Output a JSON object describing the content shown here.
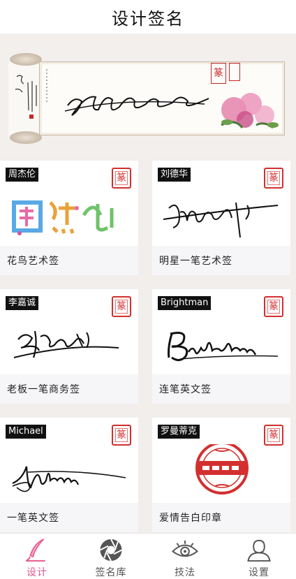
{
  "header": {
    "title": "设计签名"
  },
  "banner": {
    "seal_char": "篆"
  },
  "cards": [
    {
      "name": "周杰伦",
      "caption": "花鸟艺术签"
    },
    {
      "name": "刘德华",
      "caption": "明星一笔艺术签"
    },
    {
      "name": "李嘉诚",
      "caption": "老板一笔商务签"
    },
    {
      "name": "Brightman",
      "caption": "连笔英文签"
    },
    {
      "name": "Michael",
      "caption": "一笔英文签"
    },
    {
      "name": "罗曼蒂克",
      "caption": "爱情告白印章"
    }
  ],
  "tabs": [
    {
      "label": "设计",
      "icon": "quill-icon",
      "active": true
    },
    {
      "label": "签名库",
      "icon": "aperture-icon",
      "active": false
    },
    {
      "label": "技法",
      "icon": "eye-icon",
      "active": false
    },
    {
      "label": "设置",
      "icon": "user-icon",
      "active": false
    }
  ],
  "colors": {
    "accent": "#e8528a",
    "seal_red": "#d32f2f",
    "tab_text": "#555555"
  }
}
